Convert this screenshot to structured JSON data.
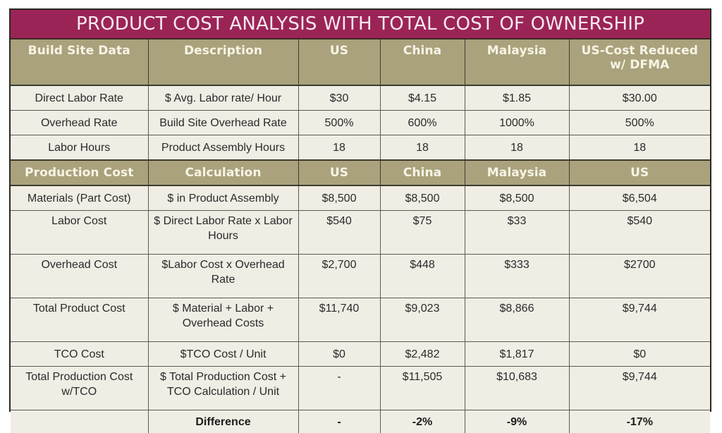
{
  "title": "PRODUCT COST ANALYSIS WITH TOTAL COST OF OWNERSHIP",
  "colors": {
    "title_band": "#9b2457",
    "header_band": "#a9a27c",
    "cell_background": "#efede4"
  },
  "build_site": {
    "headers": [
      "Build Site Data",
      "Description",
      "US",
      "China",
      "Malaysia",
      "US-Cost Reduced w/ DFMA"
    ],
    "rows": [
      [
        "Direct Labor Rate",
        "$ Avg. Labor rate/ Hour",
        "$30",
        "$4.15",
        "$1.85",
        "$30.00"
      ],
      [
        "Overhead Rate",
        "Build Site Overhead Rate",
        "500%",
        "600%",
        "1000%",
        "500%"
      ],
      [
        "Labor Hours",
        "Product Assembly Hours",
        "18",
        "18",
        "18",
        "18"
      ]
    ]
  },
  "production": {
    "headers": [
      "Production Cost",
      "Calculation",
      "US",
      "China",
      "Malaysia",
      "US"
    ],
    "rows": [
      [
        "Materials (Part Cost)",
        "$ in Product Assembly",
        "$8,500",
        "$8,500",
        "$8,500",
        "$6,504"
      ],
      [
        "Labor Cost",
        "$ Direct Labor Rate x Labor Hours",
        "$540",
        "$75",
        "$33",
        "$540"
      ],
      [
        "Overhead Cost",
        "$Labor Cost x Overhead Rate",
        "$2,700",
        "$448",
        "$333",
        "$2700"
      ],
      [
        "Total Product Cost",
        "$ Material + Labor + Overhead Costs",
        "$11,740",
        "$9,023",
        "$8,866",
        "$9,744"
      ],
      [
        "TCO Cost",
        "$TCO Cost / Unit",
        "$0",
        "$2,482",
        "$1,817",
        "$0"
      ],
      [
        "Total Production Cost w/TCO",
        "$ Total Production Cost + TCO Calculation / Unit",
        "-",
        "$11,505",
        "$10,683",
        "$9,744"
      ]
    ],
    "difference": [
      "",
      "Difference",
      "-",
      "-2%",
      "-9%",
      "-17%"
    ]
  }
}
